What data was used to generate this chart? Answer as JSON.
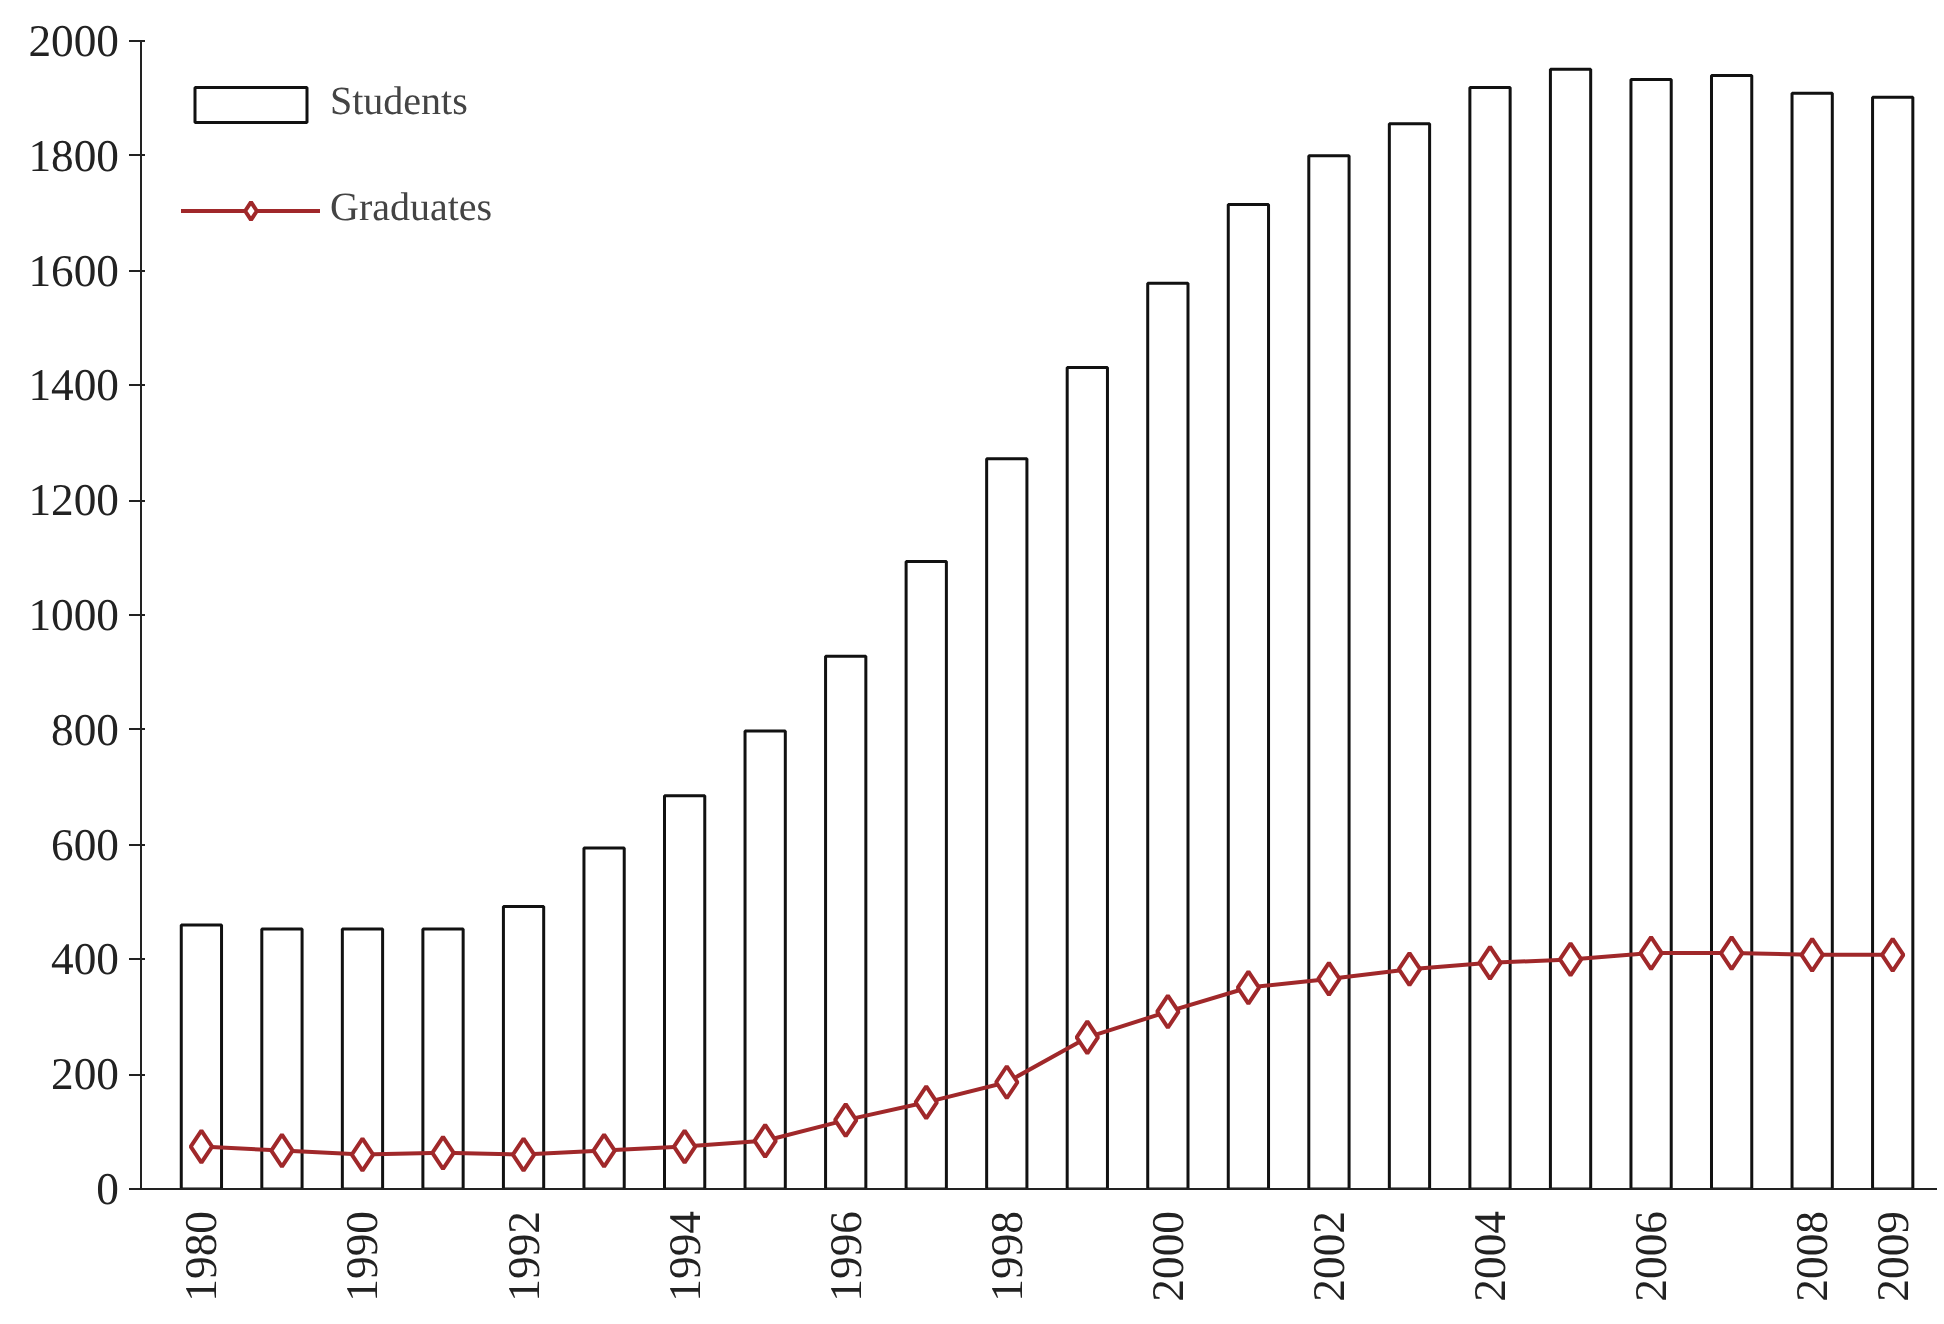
{
  "chart_data": {
    "type": "bar",
    "categories": [
      "1980",
      null,
      "1990",
      null,
      "1992",
      null,
      "1994",
      null,
      "1996",
      null,
      "1998",
      null,
      "2000",
      null,
      "2002",
      null,
      "2004",
      null,
      "2006",
      null,
      "2008",
      "2009"
    ],
    "series": [
      {
        "name": "Students",
        "color": "#ffffff",
        "values": [
          460,
          453,
          453,
          453,
          492,
          594,
          685,
          798,
          928,
          1093,
          1272,
          1431,
          1578,
          1715,
          1800,
          1856,
          1919,
          1951,
          1933,
          1940,
          1909,
          1902
        ]
      },
      {
        "name": "Graduates",
        "type": "line",
        "color": "#a0282a",
        "marker": "diamond",
        "values": [
          74,
          67,
          60,
          63,
          60,
          67,
          74,
          84,
          120,
          151,
          186,
          264,
          309,
          351,
          366,
          383,
          394,
          400,
          411,
          411,
          408,
          408
        ]
      }
    ],
    "ylim": [
      0,
      2000
    ],
    "yticks": [
      0,
      200,
      400,
      600,
      800,
      1000,
      1200,
      1400,
      1600,
      1800,
      2000
    ],
    "grid": false,
    "legend": "top left"
  }
}
